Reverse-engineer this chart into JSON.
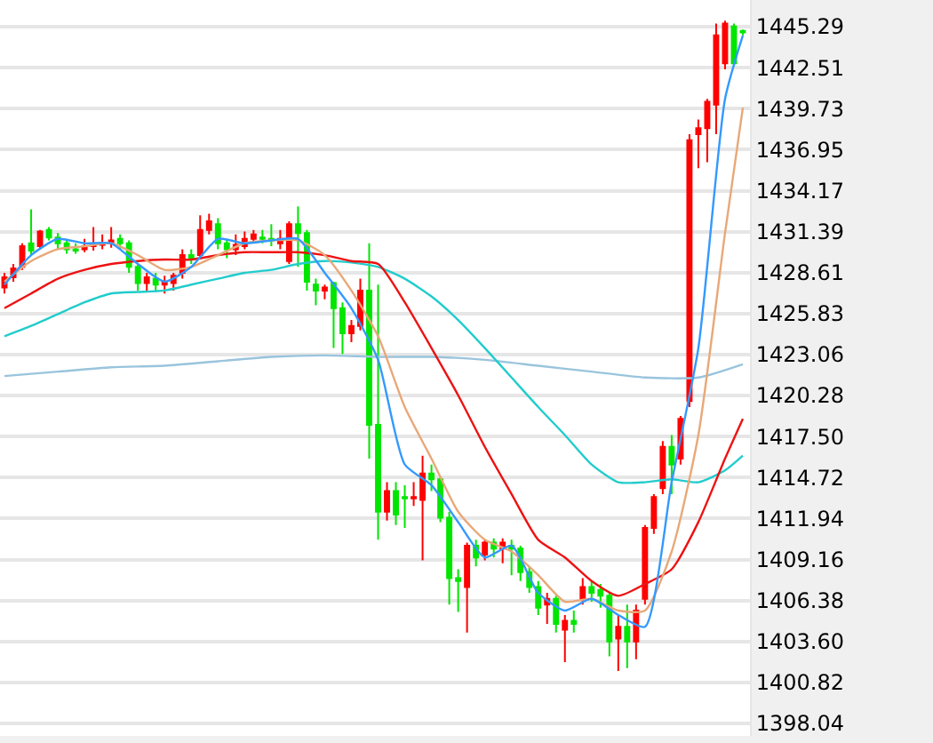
{
  "chart_data": {
    "type": "candlestick",
    "categories": [
      null,
      null,
      null,
      null,
      null,
      null,
      null,
      null,
      null,
      null,
      null,
      null,
      null,
      null,
      null,
      null,
      null,
      null,
      null,
      null,
      null,
      null,
      null,
      null,
      null,
      null,
      null,
      null,
      null,
      null,
      null,
      null,
      null,
      null,
      null,
      null,
      null,
      null,
      null,
      null,
      null,
      null,
      null,
      null,
      null,
      null,
      null,
      null,
      null,
      null,
      null,
      null,
      null,
      null,
      null,
      null,
      null,
      null,
      null,
      null,
      null,
      null,
      null,
      null,
      null,
      null,
      null,
      null,
      null,
      null,
      null,
      null,
      null,
      null,
      null,
      null,
      null,
      null,
      null,
      null,
      null,
      null,
      null,
      null
    ],
    "ylim": [
      1397.2,
      1447.1
    ],
    "yticks": [
      1398.04,
      1400.82,
      {
        "value": 1403.6,
        "label": "1403.60"
      },
      1406.38,
      1409.16,
      1411.94,
      1414.72,
      {
        "value": 1417.5,
        "label": "1417.50"
      },
      1420.28,
      1423.06,
      1425.83,
      1428.61,
      1431.39,
      1434.17,
      1436.95,
      1439.73,
      1442.51,
      1445.29
    ],
    "grid": "y",
    "tick_labels": "y",
    "series": [
      {
        "colors": [
          "#ff0000",
          "#ff0000",
          "#ff0000",
          "#00e600",
          "#ff0000",
          "#00e600",
          "#00e600",
          "#00e600",
          "#00e600",
          "#ff0000",
          "#ff0000",
          "#ff0000",
          "#ff0000",
          "#00e600",
          "#00e600",
          "#00e600",
          "#ff0000",
          "#00e600",
          "#ff0000",
          "#ff0000",
          "#ff0000",
          "#00e600",
          "#ff0000",
          "#ff0000",
          "#00e600",
          "#00e600",
          "#ff0000",
          "#ff0000",
          "#ff0000",
          "#00e600",
          "#00e600",
          "#ff0000",
          "#ff0000",
          "#00e600",
          "#00e600",
          "#00e600",
          "#ff0000",
          "#00e600",
          "#00e600",
          "#ff0000",
          "#ff0000",
          "#00e600",
          "#00e600",
          "#ff0000",
          "#00e600",
          "#00e600",
          "#ff0000",
          "#ff0000",
          "#00e600",
          "#00e600",
          "#00e600",
          "#00e600",
          "#ff0000",
          "#00e600",
          "#ff0000",
          "#00e600",
          "#ff0000",
          "#00e600",
          "#00e600",
          "#00e600",
          "#00e600",
          "#ff0000",
          "#00e600",
          "#ff0000",
          "#00e600",
          "#ff0000",
          "#00e600",
          "#00e600",
          "#00e600",
          "#ff0000",
          "#00e600",
          "#ff0000",
          "#ff0000",
          "#ff0000",
          "#ff0000",
          "#00e600",
          "#ff0000",
          "#ff0000",
          "#ff0000",
          "#ff0000",
          "#ff0000",
          "#ff0000",
          "#00e600",
          "#00e600"
        ],
        "ohlc": [
          [
            1427.6,
            1428.6,
            1427.2,
            1428.3
          ],
          [
            1428.3,
            1429.2,
            1428.0,
            1428.9
          ],
          [
            1429.0,
            1430.6,
            1428.8,
            1430.4
          ],
          [
            1430.6,
            1432.9,
            1429.8,
            1430.1
          ],
          [
            1430.4,
            1431.5,
            1430.2,
            1431.4
          ],
          [
            1431.5,
            1431.7,
            1430.8,
            1431.0
          ],
          [
            1431.0,
            1431.3,
            1430.2,
            1430.6
          ],
          [
            1430.6,
            1430.9,
            1429.9,
            1430.2
          ],
          [
            1430.2,
            1430.6,
            1429.9,
            1430.1
          ],
          [
            1430.2,
            1430.9,
            1430.0,
            1430.4
          ],
          [
            1430.4,
            1431.7,
            1430.1,
            1430.5
          ],
          [
            1430.5,
            1431.2,
            1430.2,
            1430.6
          ],
          [
            1430.6,
            1431.7,
            1430.3,
            1430.8
          ],
          [
            1430.9,
            1431.2,
            1430.2,
            1430.6
          ],
          [
            1430.6,
            1430.8,
            1428.6,
            1429.0
          ],
          [
            1429.0,
            1429.2,
            1427.4,
            1427.9
          ],
          [
            1427.9,
            1428.6,
            1427.4,
            1428.3
          ],
          [
            1428.2,
            1428.6,
            1427.4,
            1427.8
          ],
          [
            1427.8,
            1428.4,
            1427.2,
            1428.0
          ],
          [
            1427.9,
            1428.6,
            1427.4,
            1428.4
          ],
          [
            1428.6,
            1430.2,
            1428.2,
            1429.8
          ],
          [
            1429.8,
            1430.2,
            1429.2,
            1429.6
          ],
          [
            1429.8,
            1432.5,
            1429.5,
            1431.5
          ],
          [
            1431.5,
            1432.6,
            1431.2,
            1432.1
          ],
          [
            1431.9,
            1432.3,
            1430.2,
            1430.6
          ],
          [
            1430.6,
            1430.9,
            1429.6,
            1430.2
          ],
          [
            1430.2,
            1431.2,
            1429.8,
            1430.5
          ],
          [
            1430.4,
            1431.4,
            1430.2,
            1430.9
          ],
          [
            1430.9,
            1431.5,
            1430.6,
            1431.2
          ],
          [
            1431.0,
            1431.5,
            1430.6,
            1430.9
          ],
          [
            1430.9,
            1431.9,
            1430.4,
            1430.8
          ],
          [
            1430.6,
            1431.5,
            1430.2,
            1430.9
          ],
          [
            1429.4,
            1432.1,
            1429.2,
            1431.9
          ],
          [
            1431.9,
            1433.1,
            1429.0,
            1431.3
          ],
          [
            1431.3,
            1431.5,
            1427.4,
            1428.0
          ],
          [
            1427.8,
            1428.2,
            1426.4,
            1427.4
          ],
          [
            1427.4,
            1427.8,
            1426.8,
            1427.6
          ],
          [
            1427.9,
            1428.0,
            1423.5,
            1426.2
          ],
          [
            1426.2,
            1426.6,
            1423.1,
            1424.5
          ],
          [
            1424.5,
            1425.4,
            1423.9,
            1425.0
          ],
          [
            1425.0,
            1428.2,
            1424.7,
            1427.4
          ],
          [
            1427.4,
            1430.6,
            1416.0,
            1418.3
          ],
          [
            1418.3,
            1427.8,
            1410.5,
            1412.4
          ],
          [
            1412.4,
            1414.4,
            1411.8,
            1413.8
          ],
          [
            1413.8,
            1414.4,
            1411.5,
            1412.2
          ],
          [
            1413.4,
            1414.2,
            1411.3,
            1413.3
          ],
          [
            1413.3,
            1414.4,
            1412.8,
            1413.4
          ],
          [
            1413.2,
            1416.2,
            1409.1,
            1415.0
          ],
          [
            1415.0,
            1415.6,
            1413.8,
            1414.6
          ],
          [
            1414.6,
            1414.8,
            1411.7,
            1412.0
          ],
          [
            1412.0,
            1412.4,
            1406.1,
            1407.9
          ],
          [
            1407.9,
            1408.5,
            1405.6,
            1407.7
          ],
          [
            1407.3,
            1410.3,
            1404.2,
            1410.1
          ],
          [
            1410.1,
            1410.5,
            1408.7,
            1409.3
          ],
          [
            1409.5,
            1410.5,
            1409.1,
            1410.3
          ],
          [
            1410.3,
            1410.6,
            1409.3,
            1409.9
          ],
          [
            1409.9,
            1410.6,
            1408.9,
            1410.3
          ],
          [
            1410.1,
            1410.5,
            1408.1,
            1409.9
          ],
          [
            1409.9,
            1410.1,
            1407.7,
            1408.3
          ],
          [
            1408.3,
            1408.7,
            1406.9,
            1407.3
          ],
          [
            1407.3,
            1407.7,
            1405.4,
            1405.9
          ],
          [
            1406.1,
            1406.9,
            1404.8,
            1406.5
          ],
          [
            1406.5,
            1406.7,
            1404.2,
            1404.8
          ],
          [
            1404.4,
            1405.4,
            1402.2,
            1405.0
          ],
          [
            1405.0,
            1405.7,
            1404.2,
            1404.8
          ],
          [
            1406.5,
            1407.9,
            1406.1,
            1407.3
          ],
          [
            1407.3,
            1407.7,
            1406.3,
            1406.9
          ],
          [
            1407.1,
            1407.5,
            1405.9,
            1406.7
          ],
          [
            1406.7,
            1406.9,
            1402.6,
            1403.6
          ],
          [
            1403.8,
            1405.4,
            1401.6,
            1404.6
          ],
          [
            1404.6,
            1406.1,
            1401.8,
            1403.6
          ],
          [
            1403.6,
            1406.1,
            1402.4,
            1405.7
          ],
          [
            1406.5,
            1411.5,
            1406.1,
            1411.3
          ],
          [
            1411.3,
            1413.6,
            1410.9,
            1413.4
          ],
          [
            1414.0,
            1417.2,
            1413.6,
            1416.8
          ],
          [
            1416.8,
            1417.6,
            1413.6,
            1415.6
          ],
          [
            1416.0,
            1418.9,
            1415.6,
            1418.7
          ],
          [
            1419.9,
            1438.0,
            1419.5,
            1437.6
          ],
          [
            1438.0,
            1439.0,
            1435.7,
            1438.4
          ],
          [
            1438.4,
            1440.4,
            1436.1,
            1440.2
          ],
          [
            1440.0,
            1445.5,
            1438.0,
            1444.7
          ],
          [
            1442.8,
            1445.7,
            1442.4,
            1445.5
          ],
          [
            1445.3,
            1445.5,
            1442.6,
            1442.8
          ],
          [
            1445.0,
            1445.1,
            1444.7,
            1444.9
          ]
        ]
      },
      {
        "type": "line",
        "color": "#99c4dd",
        "values": [
          1421.6,
          null,
          null,
          null,
          null,
          null,
          1421.9,
          null,
          null,
          null,
          null,
          null,
          1422.2,
          null,
          null,
          null,
          null,
          null,
          1422.3,
          null,
          null,
          null,
          null,
          null,
          1422.6,
          null,
          null,
          null,
          null,
          null,
          1422.9,
          null,
          null,
          null,
          null,
          null,
          1423.0,
          null,
          null,
          null,
          null,
          null,
          1422.9,
          null,
          null,
          null,
          null,
          null,
          1422.9,
          null,
          null,
          null,
          null,
          null,
          1422.7,
          null,
          null,
          null,
          null,
          null,
          1422.3,
          null,
          null,
          null,
          null,
          null,
          1421.9,
          null,
          null,
          null,
          null,
          null,
          1421.5,
          null,
          null,
          null,
          null,
          null,
          1421.5,
          null,
          null,
          null,
          null,
          1422.4
        ]
      },
      {
        "type": "line",
        "color": "#22cccc",
        "values": [
          1424.3,
          null,
          null,
          1425.0,
          null,
          null,
          1425.8,
          null,
          null,
          1426.6,
          null,
          null,
          1427.2,
          null,
          null,
          1427.3,
          null,
          null,
          1427.4,
          null,
          null,
          1427.8,
          null,
          null,
          1428.2,
          null,
          null,
          1428.6,
          null,
          null,
          1428.8,
          null,
          null,
          1429.2,
          null,
          null,
          1429.4,
          null,
          null,
          1429.3,
          null,
          null,
          1429.0,
          null,
          null,
          1428.2,
          null,
          null,
          1427.0,
          null,
          null,
          1425.4,
          null,
          null,
          1423.5,
          null,
          null,
          1421.5,
          null,
          null,
          1419.5,
          null,
          null,
          1417.6,
          null,
          null,
          1415.6,
          null,
          null,
          1414.4,
          null,
          null,
          1414.4,
          null,
          null,
          1414.6,
          null,
          null,
          1414.4,
          null,
          null,
          1415.2,
          null,
          1416.2
        ]
      },
      {
        "type": "line",
        "color": "#ee1111",
        "values": [
          1426.2,
          null,
          null,
          1427.2,
          null,
          null,
          1428.2,
          null,
          null,
          1428.8,
          null,
          null,
          1429.2,
          null,
          null,
          1429.4,
          null,
          null,
          1429.5,
          null,
          null,
          1429.5,
          null,
          null,
          1429.8,
          null,
          null,
          1430.0,
          null,
          null,
          1430.0,
          null,
          null,
          1430.0,
          null,
          null,
          1429.8,
          null,
          null,
          1429.4,
          null,
          null,
          1429.2,
          null,
          null,
          1426.6,
          null,
          null,
          1423.5,
          null,
          null,
          1420.3,
          null,
          null,
          1416.8,
          null,
          null,
          1413.6,
          null,
          null,
          1410.5,
          null,
          null,
          1409.3,
          null,
          null,
          1407.7,
          null,
          null,
          1406.7,
          null,
          null,
          1407.5,
          null,
          null,
          1408.5,
          null,
          null,
          1411.7,
          null,
          null,
          1416.0,
          null,
          1418.7
        ]
      },
      {
        "type": "line",
        "color": "#e8a878",
        "values": [
          1428.0,
          null,
          null,
          1429.4,
          null,
          null,
          1430.2,
          null,
          null,
          1430.4,
          null,
          null,
          1430.6,
          null,
          null,
          1429.8,
          null,
          null,
          1428.8,
          null,
          null,
          1429.0,
          null,
          null,
          1429.8,
          null,
          null,
          1430.6,
          null,
          null,
          1430.8,
          null,
          null,
          1430.8,
          null,
          null,
          1429.8,
          null,
          null,
          1427.4,
          null,
          null,
          1424.3,
          null,
          null,
          1419.5,
          null,
          null,
          1416.0,
          null,
          null,
          1412.4,
          null,
          null,
          1410.5,
          null,
          null,
          1409.7,
          null,
          null,
          1408.1,
          null,
          null,
          1406.3,
          null,
          null,
          1406.5,
          null,
          null,
          1405.7,
          null,
          null,
          1405.7,
          null,
          null,
          1409.7,
          null,
          null,
          1417.6,
          null,
          null,
          1431.3,
          null,
          1439.8
        ]
      },
      {
        "type": "line",
        "color": "#3399ff",
        "values": [
          1427.8,
          null,
          null,
          1429.8,
          null,
          null,
          1430.9,
          null,
          null,
          1430.6,
          null,
          null,
          1430.6,
          null,
          null,
          1429.2,
          null,
          null,
          1428.0,
          null,
          null,
          1429.0,
          null,
          null,
          1430.9,
          null,
          null,
          1430.6,
          null,
          null,
          1430.8,
          null,
          null,
          1430.9,
          null,
          null,
          1428.6,
          null,
          null,
          1426.2,
          null,
          null,
          1422.7,
          null,
          null,
          1415.6,
          null,
          null,
          1414.2,
          null,
          null,
          1411.7,
          null,
          null,
          1409.3,
          null,
          null,
          1410.1,
          null,
          null,
          1406.9,
          null,
          null,
          1405.7,
          null,
          null,
          1406.5,
          null,
          null,
          1405.4,
          null,
          null,
          1404.6,
          null,
          null,
          1414.4,
          null,
          null,
          1423.5,
          null,
          null,
          1440.4,
          null,
          1444.7
        ]
      }
    ]
  }
}
